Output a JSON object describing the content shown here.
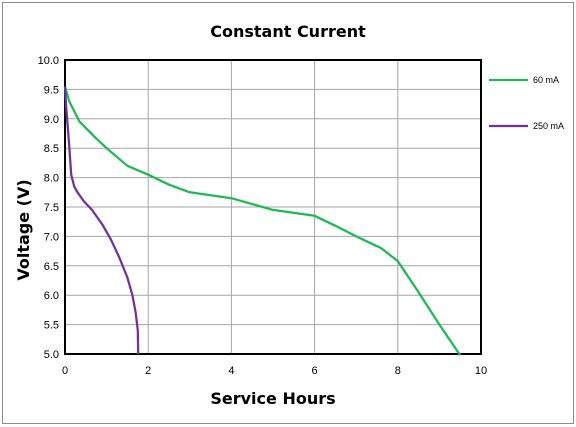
{
  "chart_data": {
    "type": "line",
    "title": "Constant Current",
    "xlabel": "Service Hours",
    "ylabel": "Voltage (V)",
    "xlim": [
      0,
      10
    ],
    "ylim": [
      5.0,
      10.0
    ],
    "x_ticks": [
      "0",
      "2",
      "4",
      "6",
      "8",
      "10"
    ],
    "y_ticks": [
      "5.0",
      "5.5",
      "6.0",
      "6.5",
      "7.0",
      "7.5",
      "8.0",
      "8.5",
      "9.0",
      "9.5",
      "10.0"
    ],
    "grid": true,
    "legend_position": "right",
    "series": [
      {
        "name": "60 mA",
        "color": "#1db954",
        "points": [
          [
            0,
            9.55
          ],
          [
            0.1,
            9.3
          ],
          [
            0.35,
            8.95
          ],
          [
            0.7,
            8.7
          ],
          [
            1.0,
            8.5
          ],
          [
            1.5,
            8.2
          ],
          [
            2.0,
            8.05
          ],
          [
            2.5,
            7.88
          ],
          [
            3.0,
            7.75
          ],
          [
            4.0,
            7.65
          ],
          [
            4.5,
            7.55
          ],
          [
            5.0,
            7.45
          ],
          [
            6.0,
            7.35
          ],
          [
            6.5,
            7.18
          ],
          [
            7.0,
            7.0
          ],
          [
            7.6,
            6.8
          ],
          [
            8.0,
            6.58
          ],
          [
            8.5,
            6.05
          ],
          [
            9.0,
            5.5
          ],
          [
            9.5,
            4.98
          ]
        ]
      },
      {
        "name": "250 mA",
        "color": "#7030a0",
        "points": [
          [
            0,
            9.55
          ],
          [
            0.03,
            9.2
          ],
          [
            0.1,
            8.55
          ],
          [
            0.15,
            8.05
          ],
          [
            0.22,
            7.85
          ],
          [
            0.3,
            7.75
          ],
          [
            0.45,
            7.6
          ],
          [
            0.65,
            7.45
          ],
          [
            0.9,
            7.2
          ],
          [
            1.1,
            6.95
          ],
          [
            1.3,
            6.65
          ],
          [
            1.5,
            6.3
          ],
          [
            1.62,
            6.0
          ],
          [
            1.7,
            5.7
          ],
          [
            1.75,
            5.4
          ],
          [
            1.76,
            5.0
          ]
        ]
      }
    ]
  }
}
